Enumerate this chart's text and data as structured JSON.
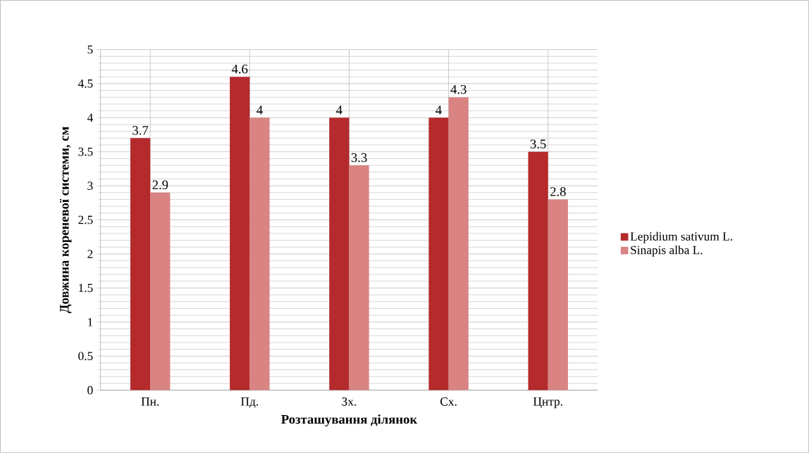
{
  "chart_data": {
    "type": "bar",
    "xlabel": "Розташування ділянок",
    "ylabel": "Довжина кореневої системи, см",
    "categories": [
      "Пн.",
      "Пд.",
      "Зх.",
      "Сх.",
      "Цнтр."
    ],
    "series": [
      {
        "name": "Lepidium sativum L.",
        "color": "#b52a2c",
        "values": [
          3.7,
          4.6,
          4,
          4,
          3.5
        ]
      },
      {
        "name": "Sinapis alba L.",
        "color": "#d98483",
        "values": [
          2.9,
          4,
          3.3,
          4.3,
          2.8
        ]
      }
    ],
    "ylim": [
      0,
      5
    ],
    "yticks": [
      0,
      0.5,
      1,
      1.5,
      2,
      2.5,
      3,
      3.5,
      4,
      4.5,
      5
    ],
    "grid": true,
    "legend": "right",
    "data_labels": true
  }
}
